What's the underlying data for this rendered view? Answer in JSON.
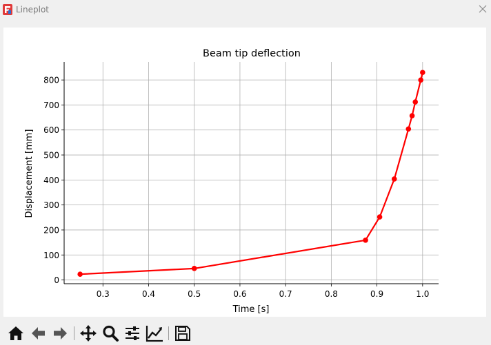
{
  "window": {
    "title": "Lineplot"
  },
  "toolbar": {
    "buttons": [
      {
        "name": "home-icon"
      },
      {
        "name": "back-arrow-icon"
      },
      {
        "name": "forward-arrow-icon"
      },
      {
        "name": "pan-icon"
      },
      {
        "name": "zoom-icon"
      },
      {
        "name": "configure-subplots-icon"
      },
      {
        "name": "edit-axis-icon"
      },
      {
        "name": "save-icon"
      }
    ]
  },
  "chart_data": {
    "type": "line",
    "title": "Beam tip deflection",
    "xlabel": "Time [s]",
    "ylabel": "Displacement [mm]",
    "xlim": [
      0.215,
      1.035
    ],
    "ylim": [
      -15,
      872
    ],
    "grid": true,
    "line_color": "#ff0000",
    "xticks": [
      0.3,
      0.4,
      0.5,
      0.6,
      0.7,
      0.8,
      0.9,
      1.0
    ],
    "xtick_labels": [
      "0.3",
      "0.4",
      "0.5",
      "0.6",
      "0.7",
      "0.8",
      "0.9",
      "1.0"
    ],
    "yticks": [
      0,
      100,
      200,
      300,
      400,
      500,
      600,
      700,
      800
    ],
    "ytick_labels": [
      "0",
      "100",
      "200",
      "300",
      "400",
      "500",
      "600",
      "700",
      "800"
    ],
    "x": [
      0.25,
      0.5,
      0.875,
      0.906,
      0.938,
      0.969,
      0.977,
      0.984,
      0.996,
      1.0
    ],
    "y": [
      23,
      46,
      159,
      252,
      404,
      604,
      657,
      712,
      800,
      830
    ]
  }
}
